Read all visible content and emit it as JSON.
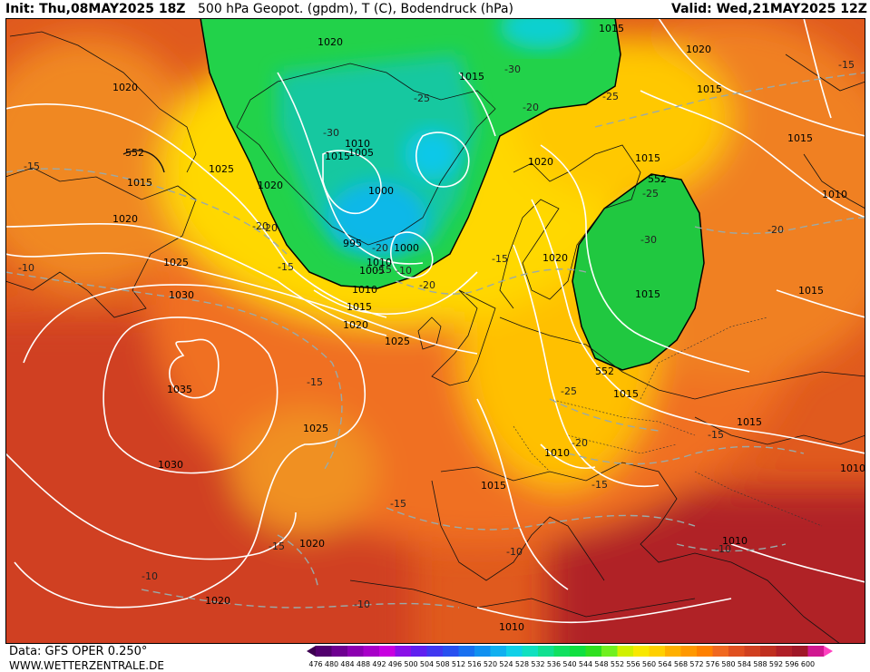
{
  "header": {
    "init": "Init: Thu,08MAY2025 18Z",
    "title": "500 hPa Geopot. (gpdm), T (C), Bodendruck (hPa)",
    "valid": "Valid: Wed,21MAY2025 12Z"
  },
  "footer": {
    "data_source": "Data: GFS OPER 0.250°",
    "website": "WWW.WETTERZENTRALE.DE"
  },
  "colorbar": {
    "ticks": [
      "476",
      "480",
      "484",
      "488",
      "492",
      "496",
      "500",
      "504",
      "508",
      "512",
      "516",
      "520",
      "524",
      "528",
      "532",
      "536",
      "540",
      "544",
      "548",
      "552",
      "556",
      "560",
      "564",
      "568",
      "572",
      "576",
      "580",
      "584",
      "588",
      "592",
      "596",
      "600"
    ],
    "colors": [
      "#3c0050",
      "#52006e",
      "#6e0090",
      "#8c00b0",
      "#a800c8",
      "#c800e0",
      "#8a10e8",
      "#6020f0",
      "#4038f0",
      "#2850f0",
      "#1870f0",
      "#1090f0",
      "#10b0f0",
      "#10d0e8",
      "#10e0c0",
      "#10e090",
      "#10e060",
      "#10e040",
      "#30e020",
      "#70f020",
      "#d0f000",
      "#f8e800",
      "#ffd000",
      "#ffb000",
      "#ff9800",
      "#ff8000",
      "#f06820",
      "#e05020",
      "#d04020",
      "#c03020",
      "#b02028",
      "#a01828",
      "#d01890",
      "#ff40c0"
    ]
  },
  "pressure_labels": [
    "1020",
    "1015",
    "1020",
    "1025",
    "1030",
    "1035",
    "1030",
    "1025",
    "1020",
    "1020",
    "1025",
    "1020",
    "1015",
    "1010",
    "1005",
    "1010",
    "1000",
    "1000",
    "995",
    "1005",
    "1015",
    "1020",
    "1025",
    "1015",
    "1020",
    "1015",
    "1015",
    "1015",
    "1020",
    "1010",
    "1015",
    "1010",
    "1020",
    "1015",
    "1010",
    "1010",
    "1015",
    "1020",
    "1015",
    "1015",
    "1015",
    "1010",
    "1010"
  ],
  "geopotential_labels": [
    "552",
    "552",
    "552"
  ],
  "temperature_labels": [
    "-15",
    "-10",
    "-20",
    "-15",
    "-30",
    "-25",
    "-30",
    "-20",
    "-25",
    "-20",
    "-15",
    "-20",
    "-25",
    "-30",
    "-15",
    "-25",
    "-20",
    "-15",
    "-15",
    "-15",
    "-10",
    "-10",
    "-10",
    "-15",
    "-20",
    "-15",
    "-10",
    "-20",
    "-15",
    "-10"
  ]
}
